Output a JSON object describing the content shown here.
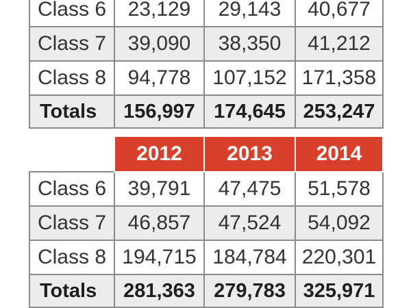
{
  "top_table": {
    "rows": [
      {
        "label": "Class 6",
        "values": [
          "23,129",
          "29,143",
          "40,677"
        ]
      },
      {
        "label": "Class 7",
        "values": [
          "39,090",
          "38,350",
          "41,212"
        ]
      },
      {
        "label": "Class 8",
        "values": [
          "94,778",
          "107,152",
          "171,358"
        ]
      },
      {
        "label": "Totals",
        "values": [
          "156,997",
          "174,645",
          "253,247"
        ]
      }
    ]
  },
  "bottom_table": {
    "headers": [
      "2012",
      "2013",
      "2014"
    ],
    "rows": [
      {
        "label": "Class 6",
        "values": [
          "39,791",
          "47,475",
          "51,578"
        ]
      },
      {
        "label": "Class 7",
        "values": [
          "46,857",
          "47,524",
          "54,092"
        ]
      },
      {
        "label": "Class 8",
        "values": [
          "194,715",
          "184,784",
          "220,301"
        ]
      },
      {
        "label": "Totals",
        "values": [
          "281,363",
          "279,783",
          "325,971"
        ]
      }
    ]
  },
  "colors": {
    "header_bg": "#d9402c",
    "alt_row_bg": "#ececec",
    "border": "#8a8a8a"
  }
}
